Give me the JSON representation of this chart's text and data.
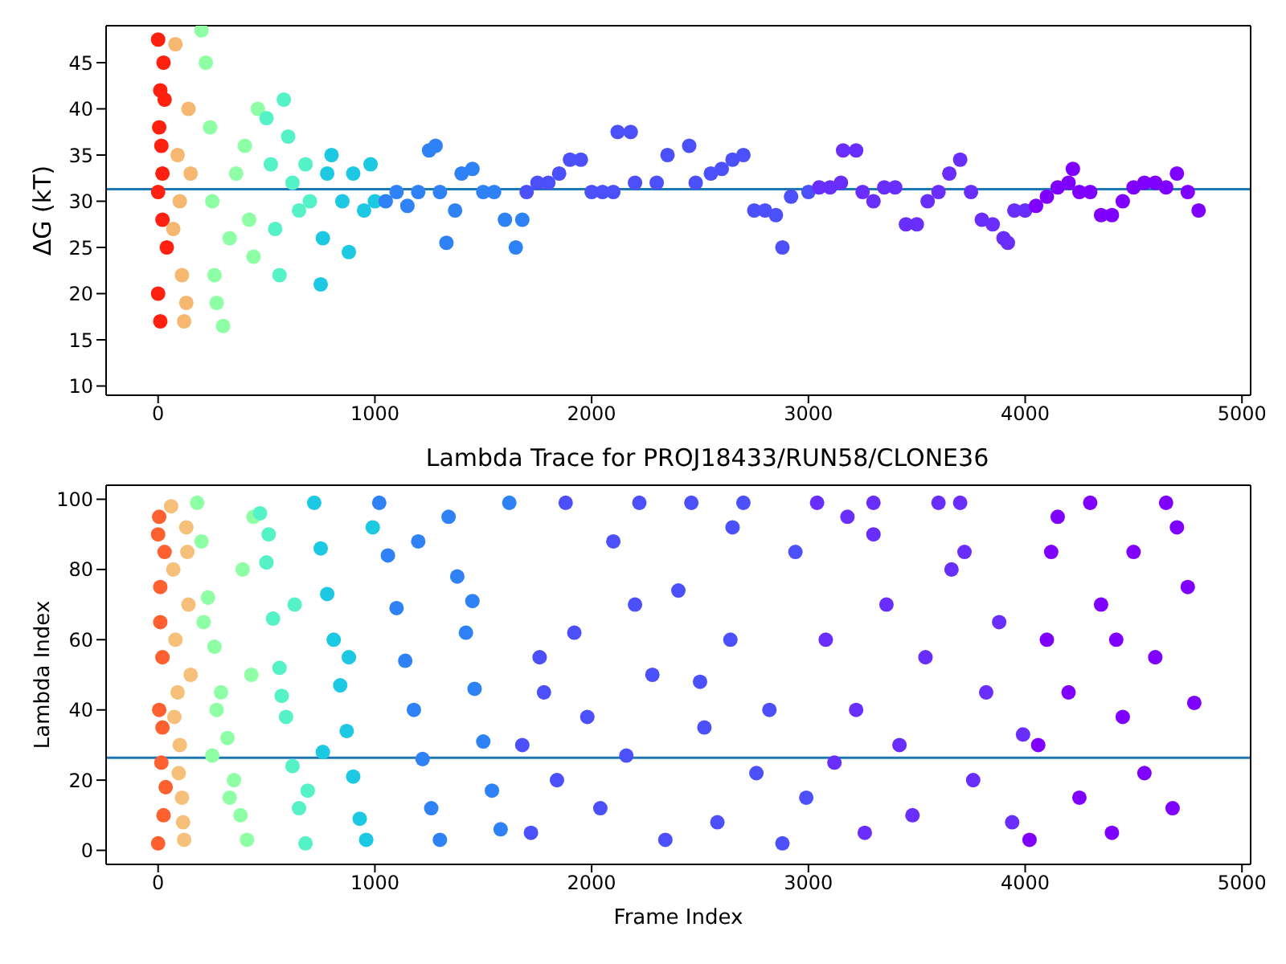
{
  "chart_data": [
    {
      "type": "scatter",
      "ylabel": "ΔG (kT)",
      "xlim": [
        -240,
        5040
      ],
      "ylim": [
        9,
        49
      ],
      "xticks": [
        0,
        1000,
        2000,
        3000,
        4000,
        5000
      ],
      "yticks": [
        10,
        15,
        20,
        25,
        30,
        35,
        40,
        45
      ],
      "grid": false,
      "marker": "circle",
      "ref_lines": [
        {
          "axis": "y",
          "value": 31.3,
          "color": "#1f77b4"
        }
      ],
      "series": [
        {
          "color": "#ff2010",
          "x": [
            0,
            10,
            5,
            15,
            20,
            0,
            10,
            25,
            30,
            0,
            20,
            40
          ],
          "values": [
            47.5,
            42,
            38,
            36,
            28,
            20,
            17,
            45,
            41,
            31,
            33,
            25
          ]
        },
        {
          "color": "#f6b870",
          "x": [
            80,
            90,
            100,
            110,
            120,
            140,
            70,
            130,
            150
          ],
          "values": [
            47,
            35,
            30,
            22,
            17,
            40,
            27,
            19,
            33
          ]
        },
        {
          "color": "#8effa4",
          "x": [
            200,
            220,
            240,
            250,
            260,
            270,
            300,
            330,
            360,
            400,
            420,
            440,
            460
          ],
          "values": [
            48.5,
            45,
            38,
            30,
            22,
            19,
            16.5,
            26,
            33,
            36,
            28,
            24,
            40
          ]
        },
        {
          "color": "#54f2c6",
          "x": [
            500,
            520,
            540,
            560,
            580,
            600,
            620,
            650,
            680,
            700
          ],
          "values": [
            39,
            34,
            27,
            22,
            41,
            37,
            32,
            29,
            34,
            30
          ]
        },
        {
          "color": "#1cc8e2",
          "x": [
            750,
            760,
            780,
            800,
            850,
            880,
            900,
            950,
            980,
            1000
          ],
          "values": [
            21,
            26,
            33,
            35,
            30,
            24.5,
            33,
            29,
            34,
            30
          ]
        },
        {
          "color": "#2e82f5",
          "x": [
            1050,
            1100,
            1150,
            1200,
            1250,
            1280,
            1300,
            1330,
            1370,
            1400,
            1450,
            1500,
            1550,
            1600,
            1650,
            1680
          ],
          "values": [
            30,
            31,
            29.5,
            31,
            35.5,
            36,
            31,
            25.5,
            29,
            33,
            33.5,
            31,
            31,
            28,
            25,
            28
          ]
        },
        {
          "color": "#4c50fb",
          "x": [
            1700,
            1750,
            1800,
            1850,
            1900,
            1950,
            2000,
            2050,
            2100,
            2120,
            2180,
            2200,
            2300,
            2350,
            2450,
            2480,
            2550,
            2600,
            2650,
            2700,
            2750,
            2800,
            2850,
            2880,
            2920,
            3000
          ],
          "values": [
            31,
            32,
            32,
            33,
            34.5,
            34.5,
            31,
            31,
            31,
            37.5,
            37.5,
            32,
            32,
            35,
            36,
            32,
            33,
            33.5,
            34.5,
            35,
            29,
            29,
            28.5,
            25,
            30.5,
            31
          ]
        },
        {
          "color": "#6a2efc",
          "x": [
            3050,
            3100,
            3150,
            3160,
            3220,
            3250,
            3300,
            3350,
            3400,
            3450,
            3500,
            3550,
            3600,
            3650,
            3700,
            3750,
            3800,
            3850,
            3900,
            3920,
            3950,
            4000
          ],
          "values": [
            31.5,
            31.5,
            32,
            35.5,
            35.5,
            31,
            30,
            31.5,
            31.5,
            27.5,
            27.5,
            30,
            31,
            33,
            34.5,
            31,
            28,
            27.5,
            26,
            25.5,
            29,
            29
          ]
        },
        {
          "color": "#8000ff",
          "x": [
            4050,
            4100,
            4150,
            4200,
            4220,
            4250,
            4300,
            4350,
            4400,
            4450,
            4500,
            4550,
            4600,
            4650,
            4700,
            4750,
            4800
          ],
          "values": [
            29.5,
            30.5,
            31.5,
            32,
            33.5,
            31,
            31,
            28.5,
            28.5,
            30,
            31.5,
            32,
            32,
            31.5,
            33,
            31,
            29
          ]
        }
      ]
    },
    {
      "type": "scatter",
      "title": "Lambda Trace for PROJ18433/RUN58/CLONE36",
      "xlabel": "Frame Index",
      "ylabel": "Lambda Index",
      "xlim": [
        -240,
        5040
      ],
      "ylim": [
        -4,
        104
      ],
      "xticks": [
        0,
        1000,
        2000,
        3000,
        4000,
        5000
      ],
      "yticks": [
        0,
        20,
        40,
        60,
        80,
        100
      ],
      "grid": false,
      "marker": "circle",
      "ref_lines": [
        {
          "axis": "y",
          "value": 26.4,
          "color": "#1f77b4"
        }
      ],
      "series": [
        {
          "color": "#ff6030",
          "x": [
            0,
            10,
            20,
            5,
            15,
            25,
            0,
            30,
            10,
            20,
            35,
            5
          ],
          "values": [
            90,
            75,
            55,
            40,
            25,
            10,
            2,
            85,
            65,
            35,
            18,
            95
          ]
        },
        {
          "color": "#f6c07a",
          "x": [
            60,
            70,
            80,
            90,
            100,
            110,
            120,
            130,
            140,
            150,
            75,
            95,
            115,
            135
          ],
          "values": [
            98,
            80,
            60,
            45,
            30,
            15,
            3,
            92,
            70,
            50,
            38,
            22,
            8,
            85
          ]
        },
        {
          "color": "#8effa4",
          "x": [
            180,
            200,
            230,
            260,
            290,
            320,
            350,
            380,
            410,
            440,
            210,
            270,
            330,
            390,
            430,
            250
          ],
          "values": [
            99,
            88,
            72,
            58,
            45,
            32,
            20,
            10,
            3,
            95,
            65,
            40,
            15,
            80,
            50,
            27
          ]
        },
        {
          "color": "#54f2c6",
          "x": [
            470,
            500,
            530,
            560,
            590,
            620,
            650,
            680,
            510,
            570,
            630,
            690
          ],
          "values": [
            96,
            82,
            66,
            52,
            38,
            24,
            12,
            2,
            90,
            44,
            70,
            17
          ]
        },
        {
          "color": "#1cc8e2",
          "x": [
            720,
            750,
            780,
            810,
            840,
            870,
            900,
            930,
            960,
            990,
            760,
            880
          ],
          "values": [
            99,
            86,
            73,
            60,
            47,
            34,
            21,
            9,
            3,
            92,
            28,
            55
          ]
        },
        {
          "color": "#2e82f5",
          "x": [
            1020,
            1060,
            1100,
            1140,
            1180,
            1220,
            1260,
            1300,
            1340,
            1380,
            1420,
            1460,
            1500,
            1540,
            1580,
            1620,
            1200,
            1450
          ],
          "values": [
            99,
            84,
            69,
            54,
            40,
            26,
            12,
            3,
            95,
            78,
            62,
            46,
            31,
            17,
            6,
            99,
            88,
            71
          ]
        },
        {
          "color": "#4c50fb",
          "x": [
            1680,
            1720,
            1780,
            1840,
            1880,
            1920,
            1980,
            2040,
            2100,
            2160,
            2220,
            2280,
            2340,
            2400,
            2460,
            2520,
            2580,
            2640,
            2700,
            2760,
            2820,
            2880,
            2940,
            2990,
            1760,
            2200,
            2500,
            2650
          ],
          "values": [
            30,
            5,
            45,
            20,
            99,
            62,
            38,
            12,
            88,
            27,
            99,
            50,
            3,
            74,
            99,
            35,
            8,
            60,
            99,
            22,
            40,
            2,
            85,
            15,
            55,
            70,
            48,
            92
          ]
        },
        {
          "color": "#6a2efc",
          "x": [
            3040,
            3080,
            3120,
            3180,
            3220,
            3260,
            3300,
            3360,
            3420,
            3480,
            3540,
            3600,
            3660,
            3700,
            3760,
            3820,
            3880,
            3940,
            3990,
            3300,
            3720
          ],
          "values": [
            99,
            60,
            25,
            95,
            40,
            5,
            99,
            70,
            30,
            10,
            55,
            99,
            80,
            99,
            20,
            45,
            65,
            8,
            33,
            90,
            85
          ]
        },
        {
          "color": "#8000ff",
          "x": [
            4020,
            4060,
            4100,
            4150,
            4200,
            4250,
            4300,
            4350,
            4400,
            4450,
            4500,
            4550,
            4600,
            4650,
            4700,
            4750,
            4780,
            4120,
            4420,
            4680
          ],
          "values": [
            3,
            30,
            60,
            95,
            45,
            15,
            99,
            70,
            5,
            38,
            85,
            22,
            55,
            99,
            92,
            75,
            42,
            85,
            60,
            12
          ]
        }
      ]
    }
  ]
}
